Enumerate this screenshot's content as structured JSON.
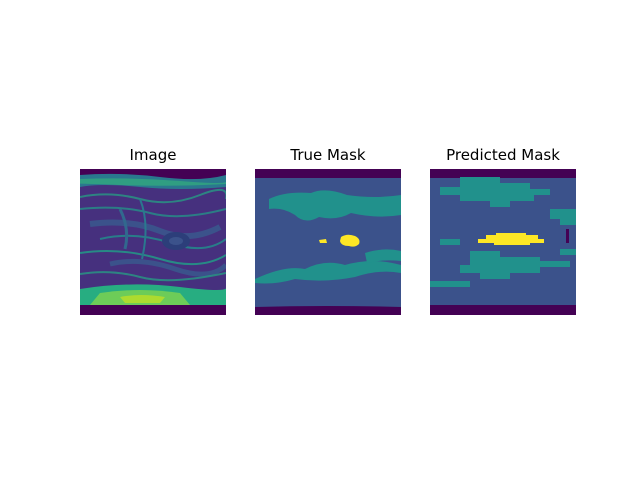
{
  "figure": {
    "panels": [
      {
        "id": "image",
        "title": "Image"
      },
      {
        "id": "true-mask",
        "title": "True Mask"
      },
      {
        "id": "predicted-mask",
        "title": "Predicted Mask"
      }
    ],
    "colormap": {
      "dark": "#440154",
      "blue": "#3b528b",
      "teal": "#21918c",
      "green": "#5ec962",
      "yellow": "#fde725"
    }
  }
}
